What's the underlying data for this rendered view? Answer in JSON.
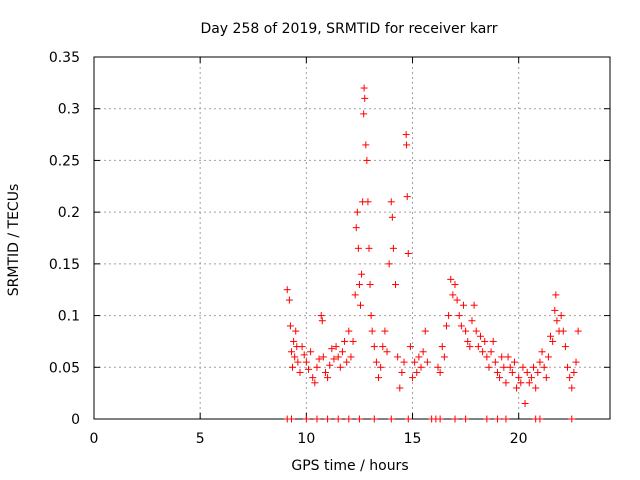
{
  "chart_data": {
    "type": "scatter",
    "title": "Day 258 of 2019, SRMTID for receiver karr",
    "xlabel": "GPS time / hours",
    "ylabel": "SRMTID / TECUs",
    "xlim": [
      0,
      24.3
    ],
    "ylim": [
      0,
      0.35
    ],
    "x_ticks": [
      "0",
      "5",
      "10",
      "15",
      "20"
    ],
    "y_ticks": [
      "0",
      "0.05",
      "0.1",
      "0.15",
      "0.2",
      "0.25",
      "0.3",
      "0.35"
    ],
    "grid": true,
    "legend": "none",
    "marker": "+",
    "series": [
      {
        "name": "SRMTID",
        "color": "#ff0000",
        "points": [
          [
            9.1,
            0.125
          ],
          [
            9.2,
            0.115
          ],
          [
            9.25,
            0.09
          ],
          [
            9.3,
            0.065
          ],
          [
            9.35,
            0.05
          ],
          [
            9.4,
            0.075
          ],
          [
            9.45,
            0.06
          ],
          [
            9.5,
            0.085
          ],
          [
            9.55,
            0.07
          ],
          [
            9.6,
            0.055
          ],
          [
            9.7,
            0.045
          ],
          [
            9.8,
            0.07
          ],
          [
            9.9,
            0.062
          ],
          [
            10.0,
            0.055
          ],
          [
            10.1,
            0.048
          ],
          [
            10.2,
            0.065
          ],
          [
            10.3,
            0.04
          ],
          [
            10.4,
            0.035
          ],
          [
            10.5,
            0.05
          ],
          [
            10.6,
            0.058
          ],
          [
            10.7,
            0.1
          ],
          [
            10.75,
            0.095
          ],
          [
            10.8,
            0.06
          ],
          [
            10.9,
            0.045
          ],
          [
            11.0,
            0.04
          ],
          [
            11.1,
            0.052
          ],
          [
            11.2,
            0.068
          ],
          [
            11.3,
            0.058
          ],
          [
            11.4,
            0.07
          ],
          [
            11.5,
            0.06
          ],
          [
            11.6,
            0.05
          ],
          [
            11.7,
            0.065
          ],
          [
            11.8,
            0.075
          ],
          [
            11.9,
            0.055
          ],
          [
            12.0,
            0.085
          ],
          [
            12.1,
            0.06
          ],
          [
            12.2,
            0.075
          ],
          [
            12.3,
            0.12
          ],
          [
            12.35,
            0.185
          ],
          [
            12.4,
            0.2
          ],
          [
            12.45,
            0.165
          ],
          [
            12.5,
            0.13
          ],
          [
            12.55,
            0.11
          ],
          [
            12.6,
            0.14
          ],
          [
            12.65,
            0.21
          ],
          [
            12.7,
            0.295
          ],
          [
            12.72,
            0.32
          ],
          [
            12.75,
            0.31
          ],
          [
            12.8,
            0.265
          ],
          [
            12.85,
            0.25
          ],
          [
            12.9,
            0.21
          ],
          [
            12.95,
            0.165
          ],
          [
            13.0,
            0.13
          ],
          [
            13.05,
            0.1
          ],
          [
            13.1,
            0.085
          ],
          [
            13.2,
            0.07
          ],
          [
            13.3,
            0.055
          ],
          [
            13.4,
            0.04
          ],
          [
            13.5,
            0.05
          ],
          [
            13.6,
            0.07
          ],
          [
            13.7,
            0.085
          ],
          [
            13.8,
            0.065
          ],
          [
            13.9,
            0.15
          ],
          [
            14.0,
            0.21
          ],
          [
            14.05,
            0.195
          ],
          [
            14.1,
            0.165
          ],
          [
            14.2,
            0.13
          ],
          [
            14.3,
            0.06
          ],
          [
            14.4,
            0.03
          ],
          [
            14.5,
            0.045
          ],
          [
            14.6,
            0.055
          ],
          [
            14.7,
            0.275
          ],
          [
            14.72,
            0.265
          ],
          [
            14.75,
            0.215
          ],
          [
            14.8,
            0.16
          ],
          [
            14.9,
            0.07
          ],
          [
            15.0,
            0.04
          ],
          [
            15.1,
            0.055
          ],
          [
            15.2,
            0.045
          ],
          [
            15.3,
            0.06
          ],
          [
            15.4,
            0.05
          ],
          [
            15.5,
            0.065
          ],
          [
            15.6,
            0.085
          ],
          [
            15.7,
            0.055
          ],
          [
            16.2,
            0.05
          ],
          [
            16.3,
            0.045
          ],
          [
            16.4,
            0.07
          ],
          [
            16.5,
            0.06
          ],
          [
            16.6,
            0.09
          ],
          [
            16.7,
            0.1
          ],
          [
            16.8,
            0.135
          ],
          [
            16.9,
            0.12
          ],
          [
            17.0,
            0.13
          ],
          [
            17.1,
            0.115
          ],
          [
            17.2,
            0.1
          ],
          [
            17.3,
            0.09
          ],
          [
            17.4,
            0.11
          ],
          [
            17.5,
            0.085
          ],
          [
            17.6,
            0.075
          ],
          [
            17.7,
            0.07
          ],
          [
            17.8,
            0.095
          ],
          [
            17.9,
            0.11
          ],
          [
            18.0,
            0.085
          ],
          [
            18.1,
            0.07
          ],
          [
            18.2,
            0.08
          ],
          [
            18.3,
            0.065
          ],
          [
            18.4,
            0.075
          ],
          [
            18.5,
            0.06
          ],
          [
            18.6,
            0.05
          ],
          [
            18.7,
            0.065
          ],
          [
            18.8,
            0.075
          ],
          [
            18.9,
            0.055
          ],
          [
            19.0,
            0.045
          ],
          [
            19.1,
            0.04
          ],
          [
            19.2,
            0.06
          ],
          [
            19.3,
            0.05
          ],
          [
            19.4,
            0.035
          ],
          [
            19.5,
            0.06
          ],
          [
            19.6,
            0.05
          ],
          [
            19.7,
            0.045
          ],
          [
            19.8,
            0.055
          ],
          [
            19.9,
            0.03
          ],
          [
            20.0,
            0.04
          ],
          [
            20.1,
            0.035
          ],
          [
            20.2,
            0.05
          ],
          [
            20.3,
            0.015
          ],
          [
            20.4,
            0.045
          ],
          [
            20.5,
            0.035
          ],
          [
            20.6,
            0.04
          ],
          [
            20.7,
            0.05
          ],
          [
            20.8,
            0.03
          ],
          [
            20.9,
            0.045
          ],
          [
            21.0,
            0.055
          ],
          [
            21.1,
            0.065
          ],
          [
            21.2,
            0.05
          ],
          [
            21.3,
            0.04
          ],
          [
            21.4,
            0.06
          ],
          [
            21.5,
            0.08
          ],
          [
            21.6,
            0.075
          ],
          [
            21.7,
            0.105
          ],
          [
            21.75,
            0.12
          ],
          [
            21.8,
            0.095
          ],
          [
            21.9,
            0.085
          ],
          [
            22.0,
            0.1
          ],
          [
            22.1,
            0.085
          ],
          [
            22.2,
            0.07
          ],
          [
            22.3,
            0.05
          ],
          [
            22.4,
            0.04
          ],
          [
            22.5,
            0.03
          ],
          [
            22.6,
            0.045
          ],
          [
            22.7,
            0.055
          ],
          [
            22.8,
            0.085
          ],
          [
            9.1,
            0.0
          ],
          [
            9.3,
            0.0
          ],
          [
            10.0,
            0.0
          ],
          [
            10.5,
            0.0
          ],
          [
            11.0,
            0.0
          ],
          [
            11.5,
            0.0
          ],
          [
            12.0,
            0.0
          ],
          [
            12.5,
            0.0
          ],
          [
            13.2,
            0.0
          ],
          [
            14.0,
            0.0
          ],
          [
            14.8,
            0.0
          ],
          [
            15.9,
            0.0
          ],
          [
            16.1,
            0.0
          ],
          [
            16.3,
            0.0
          ],
          [
            17.0,
            0.0
          ],
          [
            17.5,
            0.0
          ],
          [
            18.5,
            0.0
          ],
          [
            19.0,
            0.0
          ],
          [
            19.4,
            0.0
          ],
          [
            20.8,
            0.0
          ],
          [
            21.0,
            0.0
          ],
          [
            22.5,
            0.0
          ]
        ]
      }
    ]
  }
}
